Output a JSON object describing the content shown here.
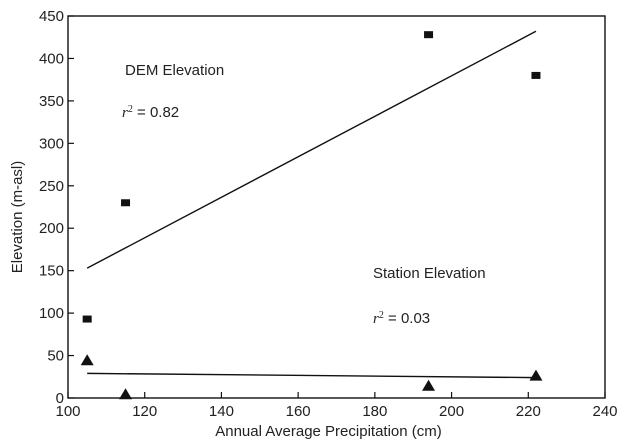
{
  "chart_data": {
    "type": "scatter",
    "title": "",
    "xlabel": "Annual Average Precipitation (cm)",
    "ylabel": "Elevation (m-asl)",
    "xlim": [
      100,
      240
    ],
    "ylim": [
      0,
      450
    ],
    "xticks": [
      "100",
      "120",
      "140",
      "160",
      "180",
      "200",
      "220",
      "240"
    ],
    "yticks": [
      "0",
      "50",
      "100",
      "150",
      "200",
      "250",
      "300",
      "350",
      "400",
      "450"
    ],
    "grid": false,
    "series": [
      {
        "name": "DEM Elevation",
        "marker": "square",
        "color": "#111111",
        "points": [
          {
            "x": 105,
            "y": 93
          },
          {
            "x": 115,
            "y": 230
          },
          {
            "x": 194,
            "y": 428
          },
          {
            "x": 222,
            "y": 380
          }
        ],
        "trendline": {
          "x": [
            105,
            222
          ],
          "y": [
            153,
            432
          ]
        },
        "annotation": {
          "label": "DEM Elevation",
          "r2_prefix": "r",
          "r2_exp": "2",
          "r2_value": " = 0.82"
        }
      },
      {
        "name": "Station Elevation",
        "marker": "triangle",
        "color": "#111111",
        "points": [
          {
            "x": 105,
            "y": 45
          },
          {
            "x": 115,
            "y": 5
          },
          {
            "x": 194,
            "y": 15
          },
          {
            "x": 222,
            "y": 27
          }
        ],
        "trendline": {
          "x": [
            105,
            222
          ],
          "y": [
            29,
            24
          ]
        },
        "annotation": {
          "label": "Station Elevation",
          "r2_prefix": "r",
          "r2_exp": "2",
          "r2_value": " = 0.03"
        }
      }
    ]
  }
}
